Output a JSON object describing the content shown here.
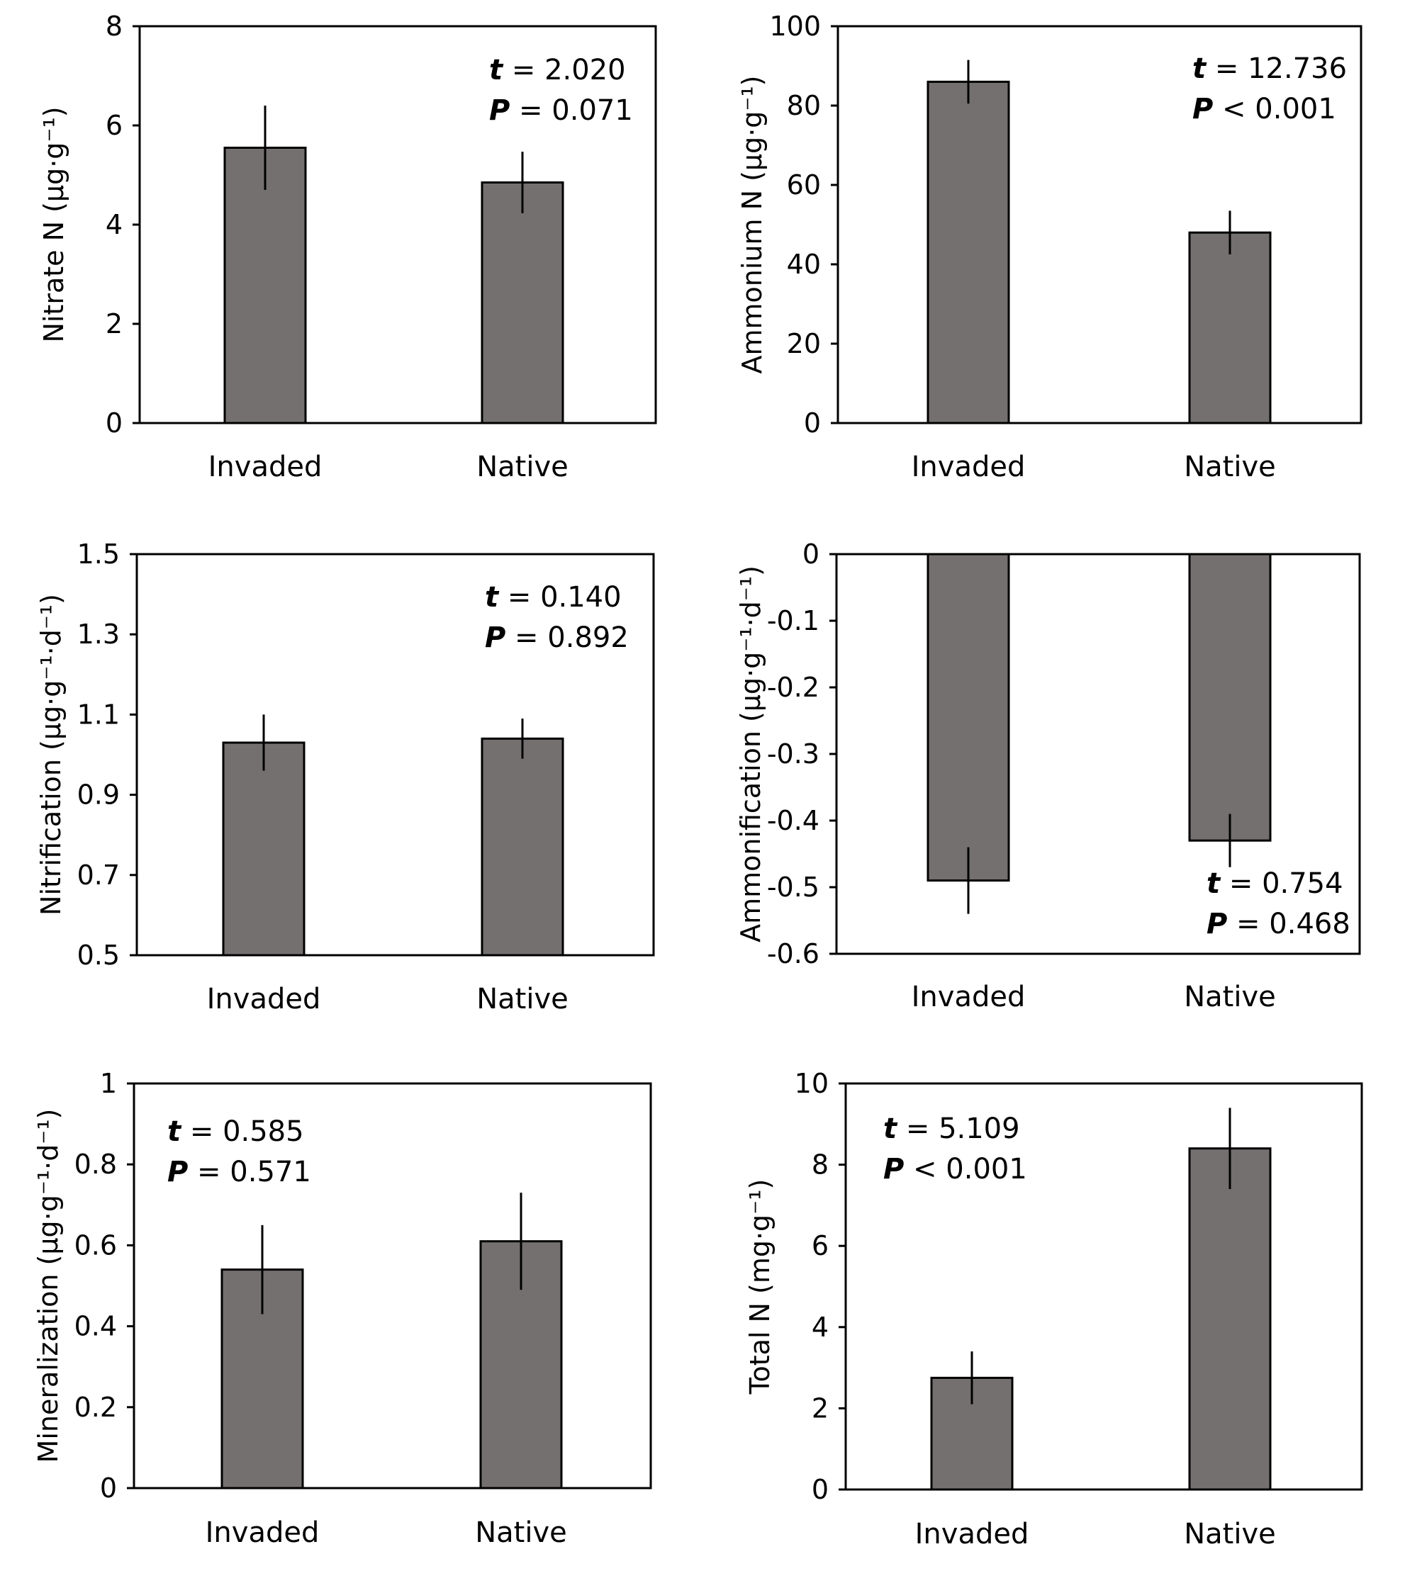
{
  "chart_data": [
    {
      "type": "bar",
      "categories": [
        "Invaded",
        "Native"
      ],
      "values": [
        5.55,
        4.85
      ],
      "errors": [
        0.85,
        0.62
      ],
      "ylabel": "Nitrate N (µg·g⁻¹)",
      "ylim": [
        0,
        8
      ],
      "yticks": [
        0,
        2,
        4,
        6,
        8
      ],
      "ytick_labels": [
        "0",
        "2",
        "4",
        "6",
        "8"
      ],
      "stat_t": "2.020",
      "stat_p": "= 0.071",
      "stat_position": "top-right",
      "grid": false
    },
    {
      "type": "bar",
      "categories": [
        "Invaded",
        "Native"
      ],
      "values": [
        86,
        48
      ],
      "errors": [
        5.5,
        5.5
      ],
      "ylabel": "Ammonium N (µg·g⁻¹)",
      "ylim": [
        0,
        100
      ],
      "yticks": [
        0,
        20,
        40,
        60,
        80,
        100
      ],
      "ytick_labels": [
        "0",
        "20",
        "40",
        "60",
        "80",
        "100"
      ],
      "stat_t": "12.736",
      "stat_p": "< 0.001",
      "stat_position": "top-right",
      "grid": false
    },
    {
      "type": "bar",
      "categories": [
        "Invaded",
        "Native"
      ],
      "values": [
        1.03,
        1.04
      ],
      "errors": [
        0.07,
        0.05
      ],
      "ylabel": "Nitrification (µg·g⁻¹·d⁻¹)",
      "ylim": [
        0.5,
        1.5
      ],
      "yticks": [
        0.5,
        0.7,
        0.9,
        1.1,
        1.3,
        1.5
      ],
      "ytick_labels": [
        "0.5",
        "0.7",
        "0.9",
        "1.1",
        "1.3",
        "1.5"
      ],
      "stat_t": "0.140",
      "stat_p": "= 0.892",
      "stat_position": "top-right",
      "grid": false
    },
    {
      "type": "bar",
      "categories": [
        "Invaded",
        "Native"
      ],
      "values": [
        -0.49,
        -0.43
      ],
      "errors": [
        0.05,
        0.04
      ],
      "ylabel": "Ammonification (µg·g⁻¹·d⁻¹)",
      "ylim": [
        -0.6,
        0
      ],
      "yticks": [
        0,
        -0.1,
        -0.2,
        -0.3,
        -0.4,
        -0.5,
        -0.6
      ],
      "ytick_labels": [
        "0",
        "-0.1",
        "-0.2",
        "-0.3",
        "-0.4",
        "-0.5",
        "-0.6"
      ],
      "stat_t": "0.754",
      "stat_p": "= 0.468",
      "stat_position": "bottom-right",
      "grid": false
    },
    {
      "type": "bar",
      "categories": [
        "Invaded",
        "Native"
      ],
      "values": [
        0.54,
        0.61
      ],
      "errors": [
        0.11,
        0.12
      ],
      "ylabel": "Mineralization (µg·g⁻¹·d⁻¹)",
      "ylim": [
        0,
        1
      ],
      "yticks": [
        0,
        0.2,
        0.4,
        0.6,
        0.8,
        1
      ],
      "ytick_labels": [
        "0",
        "0.2",
        "0.4",
        "0.6",
        "0.8",
        "1"
      ],
      "stat_t": "0.585",
      "stat_p": "= 0.571",
      "stat_position": "top-left",
      "grid": false
    },
    {
      "type": "bar",
      "categories": [
        "Invaded",
        "Native"
      ],
      "values": [
        2.75,
        8.4
      ],
      "errors": [
        0.65,
        1.0
      ],
      "ylabel": "Total N (mg·g⁻¹)",
      "ylim": [
        0,
        10
      ],
      "yticks": [
        0,
        2,
        4,
        6,
        8,
        10
      ],
      "ytick_labels": [
        "0",
        "2",
        "4",
        "6",
        "8",
        "10"
      ],
      "stat_t": "5.109",
      "stat_p": "< 0.001",
      "stat_position": "top-left",
      "grid": false
    }
  ],
  "labels": {
    "t_symbol": "t",
    "p_symbol": "P",
    "equals": "="
  },
  "colors": {
    "bar_fill": "#757070",
    "line": "#000000",
    "background": "#ffffff"
  }
}
